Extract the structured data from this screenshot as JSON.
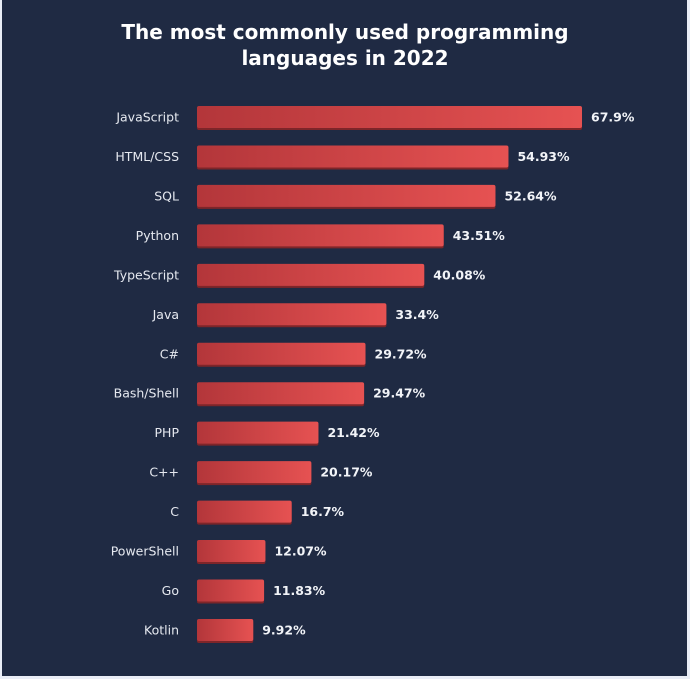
{
  "chart_data": {
    "type": "bar",
    "orientation": "horizontal",
    "title": "The most commonly used programming languages in 2022",
    "categories": [
      "JavaScript",
      "HTML/CSS",
      "SQL",
      "Python",
      "TypeScript",
      "Java",
      "C#",
      "Bash/Shell",
      "PHP",
      "C++",
      "C",
      "PowerShell",
      "Go",
      "Kotlin"
    ],
    "values": [
      67.9,
      54.93,
      52.64,
      43.51,
      40.08,
      33.4,
      29.72,
      29.47,
      21.42,
      20.17,
      16.7,
      12.07,
      11.83,
      9.92
    ],
    "value_labels": [
      "67.9%",
      "54.93%",
      "52.64%",
      "43.51%",
      "40.08%",
      "33.4%",
      "29.72%",
      "29.47%",
      "21.42%",
      "20.17%",
      "16.7%",
      "12.07%",
      "11.83%",
      "9.92%"
    ],
    "xlim": [
      0,
      67.9
    ],
    "grid": false,
    "colors": {
      "bar_start": "#b3363a",
      "bar_end": "#e65252",
      "background": "#1f2a43",
      "text": "#ffffff"
    }
  }
}
